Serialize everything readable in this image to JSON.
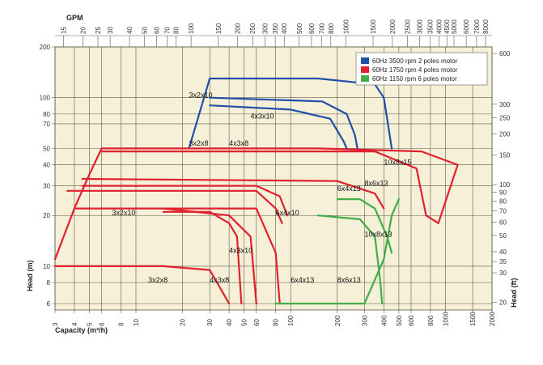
{
  "chart_data": {
    "type": "line",
    "scale": {
      "x": "log",
      "y": "log"
    },
    "grid": true,
    "legend_placement": "top-right",
    "colors": {
      "plot_bg": "#f6f0d8",
      "grid": "#5a5a4a",
      "blue": "#1f4fa8",
      "red": "#e0202c",
      "green": "#3fae49"
    },
    "axes": {
      "bottom": {
        "label": "Capacity (m³/h)",
        "range": [
          3,
          2000
        ],
        "ticks": [
          3,
          4,
          5,
          6,
          8,
          10,
          20,
          30,
          40,
          50,
          60,
          80,
          100,
          200,
          300,
          400,
          500,
          600,
          800,
          1000,
          1500,
          2000
        ]
      },
      "top": {
        "label": "GPM",
        "ticks": [
          15,
          20,
          25,
          30,
          40,
          50,
          60,
          70,
          80,
          100,
          150,
          200,
          250,
          300,
          350,
          400,
          500,
          600,
          700,
          800,
          1000,
          1500,
          2000,
          2500,
          3000,
          3500,
          4000,
          4500,
          5000,
          6000,
          7000,
          8000
        ]
      },
      "left": {
        "label": "Head (m)",
        "range": [
          5.5,
          200
        ],
        "ticks": [
          6,
          8,
          10,
          20,
          30,
          40,
          50,
          70,
          80,
          100,
          200
        ]
      },
      "right": {
        "label": "Head (ft)",
        "ticks": [
          20,
          30,
          35,
          40,
          50,
          60,
          70,
          80,
          90,
          100,
          150,
          200,
          250,
          300,
          600
        ]
      }
    },
    "legend": [
      {
        "label": "60Hz 3500 rpm 2 poles motor",
        "color": "#1f4fa8"
      },
      {
        "label": "60Hz 1750 rpm 4 poles motor",
        "color": "#e0202c"
      },
      {
        "label": "60Hz 1150 rpm 6 poles motor",
        "color": "#3fae49"
      }
    ],
    "series": [
      {
        "group": "3500 rpm",
        "color": "#1f4fa8",
        "label": "",
        "points": [
          [
            22,
            50
          ],
          [
            30,
            130
          ],
          [
            150,
            130
          ],
          [
            350,
            120
          ],
          [
            400,
            100
          ],
          [
            450,
            50
          ]
        ]
      },
      {
        "group": "3500 rpm",
        "color": "#1f4fa8",
        "label": "",
        "points": [
          [
            30,
            100
          ],
          [
            160,
            95
          ],
          [
            230,
            80
          ],
          [
            260,
            60
          ],
          [
            270,
            50
          ]
        ]
      },
      {
        "group": "3500 rpm",
        "color": "#1f4fa8",
        "label": "",
        "points": [
          [
            30,
            90
          ],
          [
            100,
            85
          ],
          [
            180,
            75
          ],
          [
            220,
            55
          ],
          [
            230,
            50
          ]
        ]
      },
      {
        "group": "1750 rpm",
        "color": "#e0202c",
        "label": "",
        "points": [
          [
            3,
            11
          ],
          [
            4,
            22
          ],
          [
            5,
            35
          ],
          [
            6,
            50
          ],
          [
            150,
            50
          ],
          [
            700,
            48
          ],
          [
            1200,
            40
          ],
          [
            900,
            18
          ],
          [
            750,
            20
          ]
        ]
      },
      {
        "group": "1750 rpm",
        "color": "#e0202c",
        "label": "",
        "points": [
          [
            6,
            48
          ],
          [
            350,
            48
          ],
          [
            650,
            38
          ],
          [
            750,
            20
          ]
        ]
      },
      {
        "group": "1750 rpm",
        "color": "#e0202c",
        "label": "",
        "points": [
          [
            4.5,
            33
          ],
          [
            200,
            32
          ],
          [
            350,
            27
          ],
          [
            400,
            22
          ]
        ]
      },
      {
        "group": "1750 rpm",
        "color": "#e0202c",
        "label": "",
        "points": [
          [
            4.5,
            30
          ],
          [
            60,
            30
          ],
          [
            85,
            26
          ],
          [
            95,
            20
          ]
        ]
      },
      {
        "group": "1750 rpm",
        "color": "#e0202c",
        "label": "",
        "points": [
          [
            3.6,
            28
          ],
          [
            60,
            28
          ],
          [
            80,
            22
          ],
          [
            88,
            18
          ]
        ]
      },
      {
        "group": "1750 rpm",
        "color": "#e0202c",
        "label": "",
        "points": [
          [
            4,
            22
          ],
          [
            60,
            22
          ],
          [
            80,
            12
          ],
          [
            85,
            6
          ]
        ]
      },
      {
        "group": "1750 rpm",
        "color": "#e0202c",
        "label": "",
        "points": [
          [
            3,
            10
          ],
          [
            15,
            10
          ],
          [
            30,
            9.5
          ],
          [
            40,
            6
          ]
        ]
      },
      {
        "group": "1750 rpm",
        "color": "#e0202c",
        "label": "",
        "points": [
          [
            15,
            21
          ],
          [
            30,
            21
          ],
          [
            40,
            18
          ],
          [
            45,
            15
          ],
          [
            48,
            6
          ]
        ]
      },
      {
        "group": "1750 rpm",
        "color": "#e0202c",
        "label": "",
        "points": [
          [
            15,
            22
          ],
          [
            40,
            20
          ],
          [
            55,
            15
          ],
          [
            60,
            6
          ]
        ]
      },
      {
        "group": "1150 rpm",
        "color": "#3fae49",
        "label": "",
        "points": [
          [
            200,
            25
          ],
          [
            280,
            25
          ],
          [
            350,
            22
          ],
          [
            420,
            15
          ],
          [
            450,
            12
          ]
        ]
      },
      {
        "group": "1150 rpm",
        "color": "#3fae49",
        "label": "",
        "points": [
          [
            150,
            20
          ],
          [
            280,
            19
          ],
          [
            350,
            15
          ],
          [
            380,
            8
          ],
          [
            390,
            6
          ]
        ]
      },
      {
        "group": "1150 rpm",
        "color": "#3fae49",
        "label": "",
        "points": [
          [
            80,
            6
          ],
          [
            300,
            6
          ],
          [
            400,
            11
          ],
          [
            450,
            20
          ],
          [
            500,
            25
          ]
        ]
      }
    ],
    "annotations": [
      {
        "text": "3x2x10",
        "x": 22,
        "y": 100,
        "color": "#111"
      },
      {
        "text": "4x3x10",
        "x": 55,
        "y": 75,
        "color": "#111"
      },
      {
        "text": "3x2x8",
        "x": 22,
        "y": 52,
        "color": "#111"
      },
      {
        "text": "4x3x8",
        "x": 40,
        "y": 52,
        "color": "#111"
      },
      {
        "text": "10x8x15",
        "x": 400,
        "y": 40,
        "color": "#111"
      },
      {
        "text": "8x6x13",
        "x": 300,
        "y": 30,
        "color": "#111"
      },
      {
        "text": "6x4x13",
        "x": 200,
        "y": 28,
        "color": "#111"
      },
      {
        "text": "3x2x10",
        "x": 7,
        "y": 20,
        "color": "#111"
      },
      {
        "text": "6x4x10",
        "x": 80,
        "y": 20,
        "color": "#111"
      },
      {
        "text": "10x8x13",
        "x": 300,
        "y": 15,
        "color": "#111"
      },
      {
        "text": "4x3x10",
        "x": 40,
        "y": 12,
        "color": "#111"
      },
      {
        "text": "3x2x8",
        "x": 12,
        "y": 8,
        "color": "#111"
      },
      {
        "text": "4x3x8",
        "x": 30,
        "y": 8,
        "color": "#111"
      },
      {
        "text": "6x4x13",
        "x": 100,
        "y": 8,
        "color": "#111"
      },
      {
        "text": "8x6x13",
        "x": 200,
        "y": 8,
        "color": "#111"
      }
    ]
  }
}
